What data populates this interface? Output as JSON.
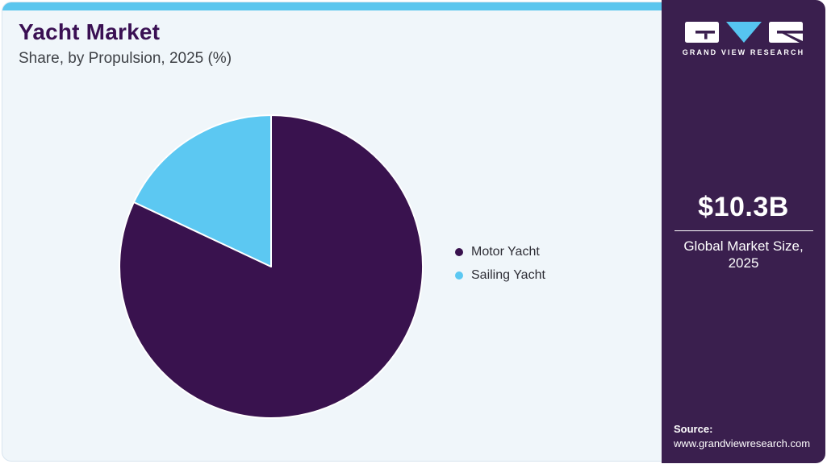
{
  "header": {
    "title": "Yacht Market",
    "subtitle": "Share, by Propulsion, 2025 (%)"
  },
  "chart_data": {
    "type": "pie",
    "title": "Yacht Market Share, by Propulsion, 2025 (%)",
    "categories": [
      "Motor Yacht",
      "Sailing Yacht"
    ],
    "values": [
      82,
      18
    ],
    "unit": "%",
    "colors": [
      "#39124E",
      "#5CC8F2"
    ],
    "slice_border_color": "#FFFFFF",
    "start_angle_deg": 0,
    "direction": "clockwise",
    "legend_position": "right-of-chart",
    "data_labels_shown": false
  },
  "sidebar": {
    "logo": {
      "brand": "GRAND VIEW RESEARCH"
    },
    "stat": {
      "value": "$10.3B",
      "label_line1": "Global Market Size,",
      "label_line2": "2025"
    },
    "source": {
      "label": "Source:",
      "url": "www.grandviewresearch.com"
    }
  },
  "theme": {
    "topbar_blue": "#5BC6EE",
    "pie_dark_purple": "#39124E",
    "pie_light_blue": "#5CC8F2",
    "sidebar_purple": "#3A1F4E",
    "card_background": "#F0F6FA",
    "title_color": "#3A1053"
  }
}
